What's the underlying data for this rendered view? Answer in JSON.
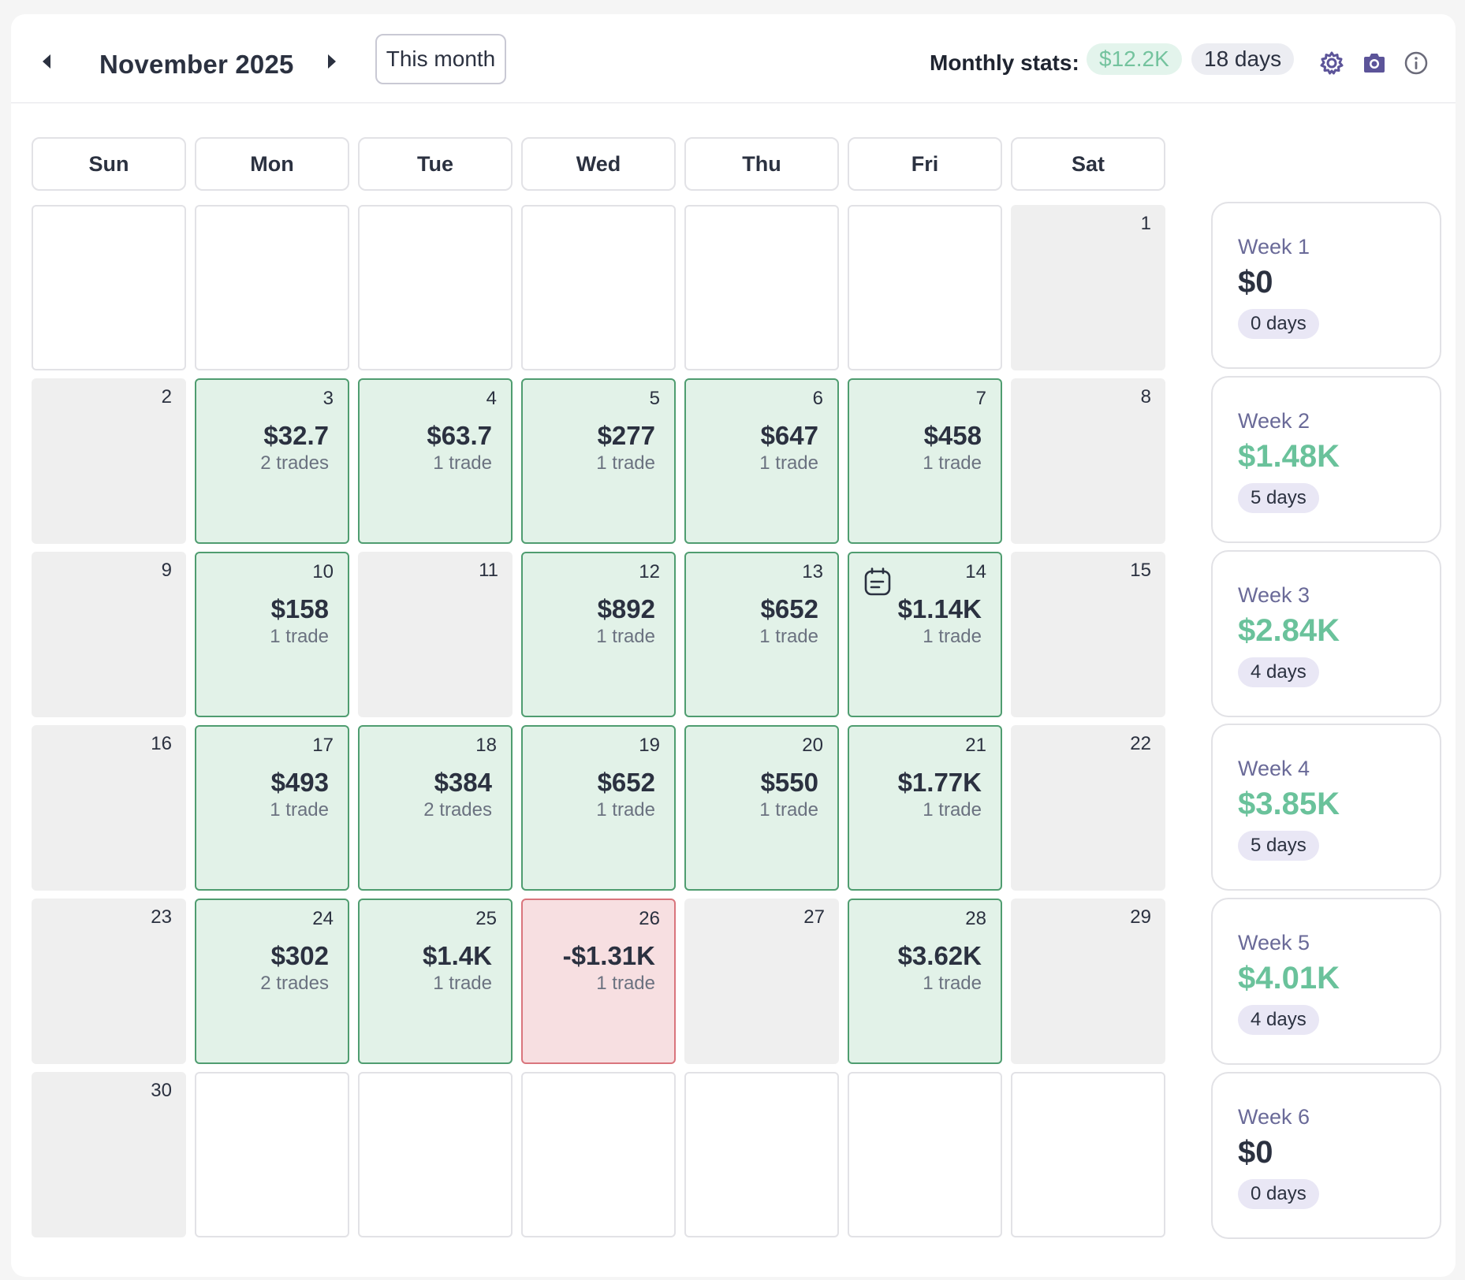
{
  "header": {
    "month_title": "November 2025",
    "this_month_label": "This month",
    "stats_label": "Monthly stats:",
    "stats_money": "$12.2K",
    "stats_days": "18 days",
    "prev_icon": "caret-left-icon",
    "next_icon": "caret-right-icon",
    "settings_icon": "gear-icon",
    "camera_icon": "camera-icon",
    "info_icon": "info-icon",
    "accent_color": "#5c5499"
  },
  "weekdays": [
    "Sun",
    "Mon",
    "Tue",
    "Wed",
    "Thu",
    "Fri",
    "Sat"
  ],
  "weeks": [
    [
      {
        "type": "empty"
      },
      {
        "type": "empty"
      },
      {
        "type": "empty"
      },
      {
        "type": "empty"
      },
      {
        "type": "empty"
      },
      {
        "type": "empty"
      },
      {
        "type": "nodata",
        "day": "1"
      }
    ],
    [
      {
        "type": "nodata",
        "day": "2"
      },
      {
        "type": "pos",
        "day": "3",
        "pnl": "$32.7",
        "trades": "2 trades"
      },
      {
        "type": "pos",
        "day": "4",
        "pnl": "$63.7",
        "trades": "1 trade"
      },
      {
        "type": "pos",
        "day": "5",
        "pnl": "$277",
        "trades": "1 trade"
      },
      {
        "type": "pos",
        "day": "6",
        "pnl": "$647",
        "trades": "1 trade"
      },
      {
        "type": "pos",
        "day": "7",
        "pnl": "$458",
        "trades": "1 trade"
      },
      {
        "type": "nodata",
        "day": "8"
      }
    ],
    [
      {
        "type": "nodata",
        "day": "9"
      },
      {
        "type": "pos",
        "day": "10",
        "pnl": "$158",
        "trades": "1 trade"
      },
      {
        "type": "nodata",
        "day": "11"
      },
      {
        "type": "pos",
        "day": "12",
        "pnl": "$892",
        "trades": "1 trade"
      },
      {
        "type": "pos",
        "day": "13",
        "pnl": "$652",
        "trades": "1 trade"
      },
      {
        "type": "pos",
        "day": "14",
        "pnl": "$1.14K",
        "trades": "1 trade",
        "note": true
      },
      {
        "type": "nodata",
        "day": "15"
      }
    ],
    [
      {
        "type": "nodata",
        "day": "16"
      },
      {
        "type": "pos",
        "day": "17",
        "pnl": "$493",
        "trades": "1 trade"
      },
      {
        "type": "pos",
        "day": "18",
        "pnl": "$384",
        "trades": "2 trades"
      },
      {
        "type": "pos",
        "day": "19",
        "pnl": "$652",
        "trades": "1 trade"
      },
      {
        "type": "pos",
        "day": "20",
        "pnl": "$550",
        "trades": "1 trade"
      },
      {
        "type": "pos",
        "day": "21",
        "pnl": "$1.77K",
        "trades": "1 trade"
      },
      {
        "type": "nodata",
        "day": "22"
      }
    ],
    [
      {
        "type": "nodata",
        "day": "23"
      },
      {
        "type": "pos",
        "day": "24",
        "pnl": "$302",
        "trades": "2 trades"
      },
      {
        "type": "pos",
        "day": "25",
        "pnl": "$1.4K",
        "trades": "1 trade"
      },
      {
        "type": "neg",
        "day": "26",
        "pnl": "-$1.31K",
        "trades": "1 trade"
      },
      {
        "type": "nodata",
        "day": "27"
      },
      {
        "type": "pos",
        "day": "28",
        "pnl": "$3.62K",
        "trades": "1 trade"
      },
      {
        "type": "nodata",
        "day": "29"
      }
    ],
    [
      {
        "type": "nodata",
        "day": "30"
      },
      {
        "type": "empty"
      },
      {
        "type": "empty"
      },
      {
        "type": "empty"
      },
      {
        "type": "empty"
      },
      {
        "type": "empty"
      },
      {
        "type": "empty"
      }
    ]
  ],
  "week_summaries": [
    {
      "label": "Week 1",
      "value": "$0",
      "days": "0 days",
      "positive": false
    },
    {
      "label": "Week 2",
      "value": "$1.48K",
      "days": "5 days",
      "positive": true
    },
    {
      "label": "Week 3",
      "value": "$2.84K",
      "days": "4 days",
      "positive": true
    },
    {
      "label": "Week 4",
      "value": "$3.85K",
      "days": "5 days",
      "positive": true
    },
    {
      "label": "Week 5",
      "value": "$4.01K",
      "days": "4 days",
      "positive": true
    },
    {
      "label": "Week 6",
      "value": "$0",
      "days": "0 days",
      "positive": false
    }
  ]
}
